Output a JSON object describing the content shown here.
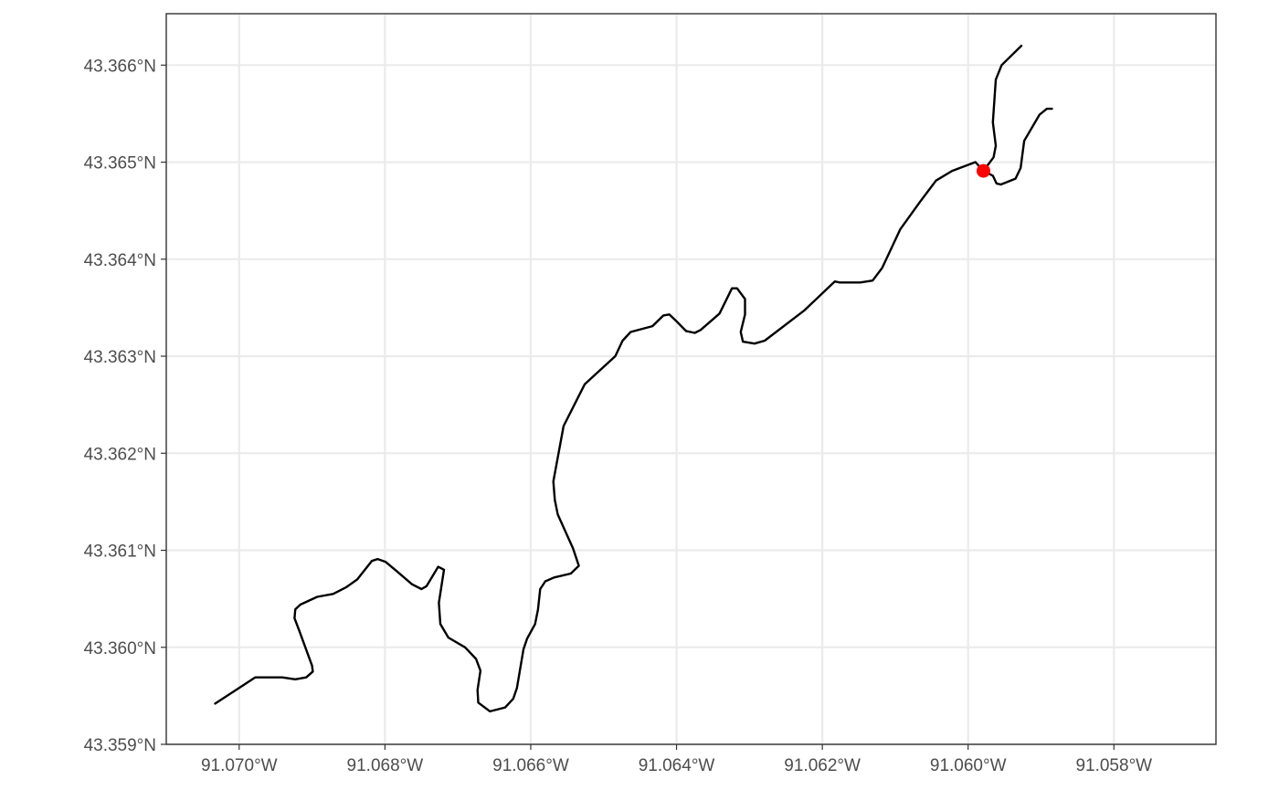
{
  "chart_data": {
    "type": "line",
    "title": "",
    "xlabel": "",
    "ylabel": "",
    "x_axis": {
      "min": -91.071,
      "max": -91.0566,
      "ticks": [
        -91.07,
        -91.068,
        -91.066,
        -91.064,
        -91.062,
        -91.06,
        -91.058
      ],
      "tick_labels": [
        "91.070°W",
        "91.068°W",
        "91.066°W",
        "91.064°W",
        "91.062°W",
        "91.060°W",
        "91.058°W"
      ]
    },
    "y_axis": {
      "min": 43.359,
      "max": 43.36653,
      "ticks": [
        43.359,
        43.36,
        43.361,
        43.362,
        43.363,
        43.364,
        43.365,
        43.366
      ],
      "tick_labels": [
        "43.359°N",
        "43.360°N",
        "43.361°N",
        "43.362°N",
        "43.363°N",
        "43.364°N",
        "43.365°N",
        "43.366°N"
      ]
    },
    "grid": true,
    "colors": {
      "track": "#000000",
      "point": "#ff0000",
      "grid": "#ebebeb",
      "border": "#333333"
    },
    "series": [
      {
        "points": [
          [
            -91.07033,
            43.35942
          ],
          [
            -91.06978,
            43.35969
          ],
          [
            -91.06941,
            43.35969
          ],
          [
            -91.06923,
            43.35967
          ],
          [
            -91.06908,
            43.35969
          ],
          [
            -91.06899,
            43.35975
          ],
          [
            -91.069,
            43.35981
          ],
          [
            -91.06918,
            43.36018
          ],
          [
            -91.06924,
            43.3603
          ],
          [
            -91.06923,
            43.36039
          ],
          [
            -91.06916,
            43.36044
          ],
          [
            -91.06893,
            43.36052
          ],
          [
            -91.06871,
            43.36055
          ],
          [
            -91.06853,
            43.36062
          ],
          [
            -91.06838,
            43.3607
          ],
          [
            -91.06818,
            43.36089
          ],
          [
            -91.0681,
            43.36091
          ],
          [
            -91.06799,
            43.36088
          ],
          [
            -91.06783,
            43.36078
          ],
          [
            -91.06763,
            43.36065
          ],
          [
            -91.0675,
            43.3606
          ],
          [
            -91.06743,
            43.36063
          ],
          [
            -91.06727,
            43.36083
          ],
          [
            -91.06719,
            43.3608
          ],
          [
            -91.06726,
            43.36046
          ],
          [
            -91.06724,
            43.36024
          ],
          [
            -91.06713,
            43.3601
          ],
          [
            -91.0669,
            43.36
          ],
          [
            -91.06675,
            43.35988
          ],
          [
            -91.06669,
            43.35976
          ],
          [
            -91.06673,
            43.35956
          ],
          [
            -91.06672,
            43.35943
          ],
          [
            -91.06656,
            43.35934
          ],
          [
            -91.06635,
            43.35938
          ],
          [
            -91.06624,
            43.35947
          ],
          [
            -91.06619,
            43.35958
          ],
          [
            -91.0661,
            43.35998
          ],
          [
            -91.06605,
            43.36009
          ],
          [
            -91.06594,
            43.36024
          ],
          [
            -91.0659,
            43.36039
          ],
          [
            -91.06587,
            43.3606
          ],
          [
            -91.0658,
            43.36068
          ],
          [
            -91.06568,
            43.36072
          ],
          [
            -91.06545,
            43.36076
          ],
          [
            -91.06534,
            43.36084
          ],
          [
            -91.06542,
            43.36102
          ],
          [
            -91.06563,
            43.36137
          ],
          [
            -91.06567,
            43.36152
          ],
          [
            -91.06569,
            43.36171
          ],
          [
            -91.06555,
            43.36228
          ],
          [
            -91.06526,
            43.36271
          ],
          [
            -91.06484,
            43.363
          ],
          [
            -91.06474,
            43.36316
          ],
          [
            -91.06463,
            43.36325
          ],
          [
            -91.06433,
            43.36331
          ],
          [
            -91.06418,
            43.36342
          ],
          [
            -91.0641,
            43.36343
          ],
          [
            -91.064,
            43.36336
          ],
          [
            -91.06387,
            43.36326
          ],
          [
            -91.06375,
            43.36324
          ],
          [
            -91.06367,
            43.36327
          ],
          [
            -91.06341,
            43.36344
          ],
          [
            -91.06324,
            43.3637
          ],
          [
            -91.06317,
            43.3637
          ],
          [
            -91.06306,
            43.36359
          ],
          [
            -91.06306,
            43.36343
          ],
          [
            -91.06312,
            43.36325
          ],
          [
            -91.06309,
            43.36315
          ],
          [
            -91.06293,
            43.36313
          ],
          [
            -91.06279,
            43.36316
          ],
          [
            -91.06225,
            43.36347
          ],
          [
            -91.06183,
            43.36377
          ],
          [
            -91.06176,
            43.36376
          ],
          [
            -91.06148,
            43.36376
          ],
          [
            -91.06131,
            43.36378
          ],
          [
            -91.06118,
            43.36391
          ],
          [
            -91.06093,
            43.36431
          ],
          [
            -91.06066,
            43.36459
          ],
          [
            -91.06044,
            43.36481
          ],
          [
            -91.06022,
            43.36491
          ],
          [
            -91.0599,
            43.365
          ],
          [
            -91.05979,
            43.36491
          ]
        ]
      },
      {
        "points": [
          [
            -91.05979,
            43.36491
          ],
          [
            -91.05965,
            43.36505
          ],
          [
            -91.05962,
            43.36517
          ],
          [
            -91.05966,
            43.36541
          ],
          [
            -91.05962,
            43.36585
          ],
          [
            -91.05954,
            43.366
          ],
          [
            -91.05927,
            43.3662
          ]
        ]
      },
      {
        "points": [
          [
            -91.05979,
            43.36491
          ],
          [
            -91.05966,
            43.36486
          ],
          [
            -91.05961,
            43.36478
          ],
          [
            -91.05955,
            43.36477
          ],
          [
            -91.05935,
            43.36483
          ],
          [
            -91.05928,
            43.36494
          ],
          [
            -91.05923,
            43.36522
          ],
          [
            -91.05902,
            43.36549
          ],
          [
            -91.05892,
            43.36555
          ],
          [
            -91.05885,
            43.36555
          ]
        ]
      }
    ],
    "highlight_point": {
      "x": -91.05979,
      "y": 43.36491
    }
  }
}
